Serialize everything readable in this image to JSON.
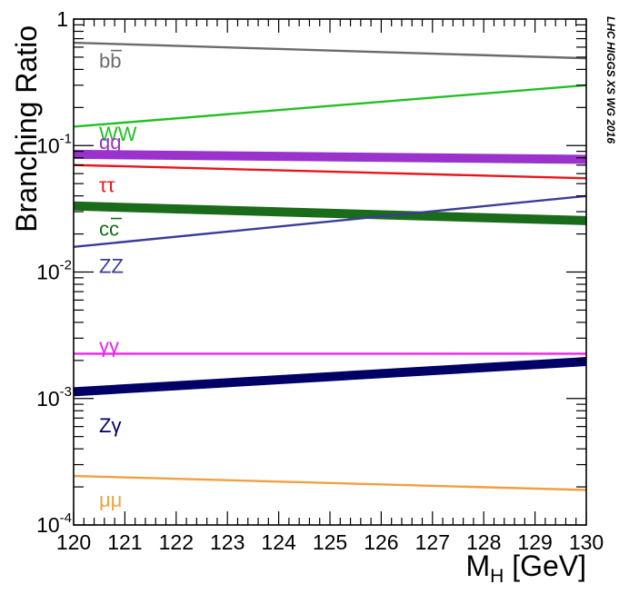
{
  "chart_data": {
    "type": "line",
    "title": "",
    "xlabel": "M_H [GeV]",
    "xlabel_main": "M",
    "xlabel_sub": "H",
    "xlabel_unit": " [GeV]",
    "ylabel": "Branching Ratio",
    "xlim": [
      120,
      130
    ],
    "ylim": [
      0.0001,
      1
    ],
    "yscale": "log",
    "x_ticks": [
      "120",
      "121",
      "122",
      "123",
      "124",
      "125",
      "126",
      "127",
      "128",
      "129",
      "130"
    ],
    "y_ticks": [
      {
        "base": "10",
        "exp": "-4",
        "value": 0.0001
      },
      {
        "base": "10",
        "exp": "-3",
        "value": 0.001
      },
      {
        "base": "10",
        "exp": "-2",
        "value": 0.01
      },
      {
        "base": "10",
        "exp": "-1",
        "value": 0.1
      },
      {
        "base": "1",
        "exp": "",
        "value": 1
      }
    ],
    "annotation": "LHC HIGGS XS WG 2016",
    "series": [
      {
        "name": "bb̄",
        "label": "bb",
        "bar": true,
        "color": "#6b6b6b",
        "band": false,
        "x": [
          120,
          130
        ],
        "values": [
          0.65,
          0.49
        ],
        "label_at": 0.47
      },
      {
        "name": "WW",
        "label": "WW",
        "bar": false,
        "color": "#22c022",
        "band": false,
        "x": [
          120,
          130
        ],
        "values": [
          0.141,
          0.3
        ],
        "label_at": 0.124
      },
      {
        "name": "gg",
        "label": "gg",
        "bar": false,
        "color": "#9933cc",
        "band": true,
        "x": [
          120,
          130
        ],
        "values": [
          0.0852,
          0.0777
        ],
        "label_at": 0.107
      },
      {
        "name": "ττ",
        "label": "ττ",
        "bar": false,
        "color": "#e8161b",
        "band": false,
        "x": [
          120,
          130
        ],
        "values": [
          0.0702,
          0.0551
        ],
        "label_at": 0.0489
      },
      {
        "name": "cc̄",
        "label": "cc",
        "bar": true,
        "color": "#1a6b1a",
        "band": true,
        "x": [
          120,
          130
        ],
        "values": [
          0.0333,
          0.0255
        ],
        "label_at": 0.0221
      },
      {
        "name": "ZZ",
        "label": "ZZ",
        "bar": false,
        "color": "#3b3b9a",
        "band": false,
        "x": [
          120,
          130
        ],
        "values": [
          0.0158,
          0.0399
        ],
        "label_at": 0.0112
      },
      {
        "name": "γγ",
        "label": "γγ",
        "bar": false,
        "color": "#ee22ee",
        "band": false,
        "x": [
          120,
          130
        ],
        "values": [
          0.00226,
          0.00226
        ],
        "label_at": 0.00261
      },
      {
        "name": "Zγ",
        "label": "Zγ",
        "bar": false,
        "color": "#000066",
        "band": true,
        "x": [
          120,
          130
        ],
        "values": [
          0.00113,
          0.00196
        ],
        "label_at": 0.000618
      },
      {
        "name": "μμ",
        "label": "μμ",
        "bar": false,
        "color": "#f0a040",
        "band": false,
        "x": [
          120,
          130
        ],
        "values": [
          0.000244,
          0.000189
        ],
        "label_at": 0.000159
      }
    ]
  }
}
